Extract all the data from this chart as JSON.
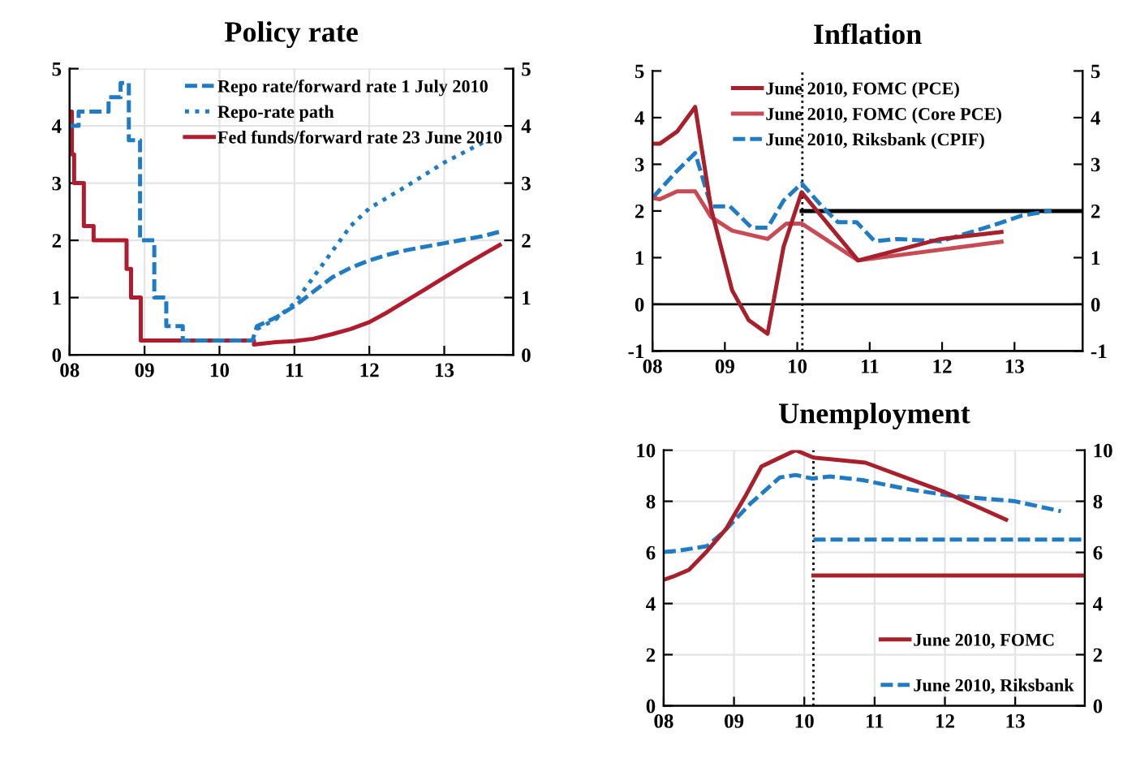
{
  "chart_data": [
    {
      "type": "line",
      "title": "Policy rate",
      "xlim": [
        2008,
        2013.92
      ],
      "xticks": [
        {
          "value": 2008,
          "label": "08"
        },
        {
          "value": 2009,
          "label": "09"
        },
        {
          "value": 2010,
          "label": "10"
        },
        {
          "value": 2011,
          "label": "11"
        },
        {
          "value": 2012,
          "label": "12"
        },
        {
          "value": 2013,
          "label": "13"
        }
      ],
      "ylim": [
        0,
        5
      ],
      "yticks": [
        0,
        1,
        2,
        3,
        4,
        5
      ],
      "y2lim": [
        0,
        5
      ],
      "y2ticks": [
        0,
        1,
        2,
        3,
        4,
        5
      ],
      "grid": true,
      "legend": "top right",
      "series": [
        {
          "name": "Repo rate/forward rate 1 July 2010",
          "color": "#1f7bc4",
          "line_style": "dashed",
          "x": [
            2008.0,
            2008.12,
            2008.12,
            2008.52,
            2008.52,
            2008.68,
            2008.68,
            2008.79,
            2008.79,
            2008.94,
            2008.94,
            2009.13,
            2009.13,
            2009.29,
            2009.29,
            2009.51,
            2009.51,
            2010.44,
            2010.5,
            2010.75,
            2011,
            2011.25,
            2011.5,
            2011.75,
            2012,
            2012.25,
            2012.5,
            2013,
            2013.5,
            2013.74
          ],
          "values": [
            4.0,
            4.0,
            4.25,
            4.25,
            4.5,
            4.5,
            4.75,
            4.75,
            3.75,
            3.75,
            2.0,
            2.0,
            1.0,
            1.0,
            0.5,
            0.5,
            0.25,
            0.25,
            0.5,
            0.65,
            0.85,
            1.1,
            1.35,
            1.52,
            1.65,
            1.75,
            1.83,
            1.95,
            2.07,
            2.15
          ]
        },
        {
          "name": "Repo-rate path",
          "color": "#1f7bc4",
          "line_style": "dotted",
          "x": [
            2010.5,
            2010.75,
            2011,
            2011.25,
            2011.5,
            2011.75,
            2012,
            2012.5,
            2013,
            2013.5,
            2013.6
          ],
          "values": [
            0.45,
            0.62,
            0.9,
            1.35,
            1.8,
            2.25,
            2.56,
            2.95,
            3.36,
            3.7,
            3.78
          ]
        },
        {
          "name": "Fed funds/forward rate 23 June 2010",
          "color": "#b01c2e",
          "line_style": "solid",
          "x": [
            2008.0,
            2008.03,
            2008.03,
            2008.06,
            2008.06,
            2008.19,
            2008.19,
            2008.32,
            2008.32,
            2008.76,
            2008.76,
            2008.82,
            2008.82,
            2008.95,
            2008.95,
            2010.46,
            2010.46,
            2010.75,
            2011,
            2011.25,
            2011.5,
            2011.75,
            2012,
            2012.25,
            2012.5,
            2012.75,
            2013,
            2013.25,
            2013.5,
            2013.74
          ],
          "values": [
            4.25,
            4.25,
            3.5,
            3.5,
            3.0,
            3.0,
            2.25,
            2.25,
            2.0,
            2.0,
            1.5,
            1.5,
            1.0,
            1.0,
            0.25,
            0.25,
            0.18,
            0.22,
            0.24,
            0.28,
            0.36,
            0.45,
            0.57,
            0.75,
            0.95,
            1.15,
            1.35,
            1.55,
            1.74,
            1.92
          ]
        }
      ]
    },
    {
      "type": "line",
      "title": "Inflation",
      "xlim": [
        2008,
        2013.94
      ],
      "xticks": [
        {
          "value": 2008,
          "label": "08"
        },
        {
          "value": 2009,
          "label": "09"
        },
        {
          "value": 2010,
          "label": "10"
        },
        {
          "value": 2011,
          "label": "11"
        },
        {
          "value": 2012,
          "label": "12"
        },
        {
          "value": 2013,
          "label": "13"
        }
      ],
      "ylim": [
        -1,
        5
      ],
      "yticks": [
        -1,
        0,
        1,
        2,
        3,
        4,
        5
      ],
      "y2lim": [
        -1,
        5
      ],
      "y2ticks": [
        -1,
        0,
        1,
        2,
        3,
        4,
        5
      ],
      "grid": false,
      "legend": "top",
      "ref_lines": [
        {
          "axis": "y",
          "value": 0,
          "color": "#000000",
          "line_style": "solid"
        },
        {
          "axis": "x",
          "value": 2010.07,
          "color": "#000000",
          "line_style": "dotted"
        }
      ],
      "series": [
        {
          "name": "June 2010, FOMC (PCE)",
          "color": "#a8202c",
          "line_style": "solid",
          "x": [
            2008.0,
            2008.1,
            2008.34,
            2008.59,
            2008.81,
            2009.1,
            2009.33,
            2009.59,
            2009.81,
            2010.06,
            2010.84,
            2011.98,
            2012.82
          ],
          "values": [
            3.44,
            3.44,
            3.7,
            4.23,
            2.05,
            0.3,
            -0.34,
            -0.63,
            1.23,
            2.4,
            0.94,
            1.4,
            1.55
          ]
        },
        {
          "name": "June 2010, FOMC (Core PCE)",
          "color": "#c84a55",
          "line_style": "solid",
          "x": [
            2008.0,
            2008.1,
            2008.34,
            2008.59,
            2008.81,
            2009.1,
            2009.59,
            2009.85,
            2010.06,
            2010.84,
            2012.82
          ],
          "values": [
            2.28,
            2.25,
            2.42,
            2.42,
            1.87,
            1.58,
            1.4,
            1.73,
            1.73,
            0.94,
            1.34
          ]
        },
        {
          "name": "June 2010, Riksbank (CPIF)",
          "color": "#1f7bc4",
          "line_style": "dashed",
          "x": [
            2008.0,
            2008.34,
            2008.59,
            2008.81,
            2009.07,
            2009.37,
            2009.59,
            2009.81,
            2010.06,
            2010.34,
            2010.56,
            2010.82,
            2011.07,
            2011.38,
            2011.98,
            2012.72,
            2013.1,
            2013.51
          ],
          "values": [
            2.28,
            2.86,
            3.24,
            2.1,
            2.1,
            1.64,
            1.64,
            2.22,
            2.59,
            2.1,
            1.76,
            1.76,
            1.35,
            1.4,
            1.35,
            1.7,
            1.9,
            2.01
          ]
        },
        {
          "color": "#000000",
          "line_style": "solid",
          "x": [
            2010.06,
            2013.94
          ],
          "values": [
            2,
            2
          ]
        }
      ]
    },
    {
      "type": "line",
      "title": "Unemployment",
      "xlim": [
        2008,
        2013.99
      ],
      "xticks": [
        {
          "value": 2008,
          "label": "08"
        },
        {
          "value": 2009,
          "label": "09"
        },
        {
          "value": 2010,
          "label": "10"
        },
        {
          "value": 2011,
          "label": "11"
        },
        {
          "value": 2012,
          "label": "12"
        },
        {
          "value": 2013,
          "label": "13"
        }
      ],
      "ylim": [
        0,
        10
      ],
      "yticks": [
        0,
        2,
        4,
        6,
        8,
        10
      ],
      "y2lim": [
        0,
        10
      ],
      "y2ticks": [
        0,
        2,
        4,
        6,
        8,
        10
      ],
      "grid": true,
      "legend": "bottom right",
      "ref_lines": [
        {
          "axis": "x",
          "value": 2010.13,
          "color": "#000000",
          "line_style": "dotted"
        }
      ],
      "series": [
        {
          "name": "June 2010, FOMC",
          "color": "#a8202c",
          "line_style": "solid",
          "x": [
            2008.0,
            2008.13,
            2008.36,
            2008.62,
            2008.89,
            2009.16,
            2009.39,
            2009.61,
            2009.88,
            2010.13,
            2010.87,
            2011.97,
            2012.87
          ],
          "values": [
            4.93,
            5.05,
            5.32,
            6.06,
            6.93,
            8.19,
            9.36,
            9.65,
            10.0,
            9.71,
            9.51,
            8.39,
            7.28
          ]
        },
        {
          "name": "June 2010, Riksbank",
          "color": "#1f7bc4",
          "line_style": "dashed",
          "x": [
            2008.0,
            2008.2,
            2008.62,
            2008.85,
            2009.23,
            2009.65,
            2009.88,
            2010.11,
            2010.37,
            2010.83,
            2011.44,
            2012.05,
            2013.0,
            2013.65
          ],
          "values": [
            6.02,
            6.06,
            6.25,
            6.8,
            7.9,
            8.93,
            9.03,
            8.89,
            8.97,
            8.83,
            8.49,
            8.23,
            8.0,
            7.61
          ]
        },
        {
          "color": "#1f7bc4",
          "line_style": "dashed",
          "x": [
            2010.13,
            2013.99
          ],
          "values": [
            6.5,
            6.5
          ]
        },
        {
          "color": "#a8202c",
          "line_style": "solid",
          "x": [
            2010.13,
            2013.99
          ],
          "values": [
            5.1,
            5.1
          ]
        }
      ]
    }
  ]
}
